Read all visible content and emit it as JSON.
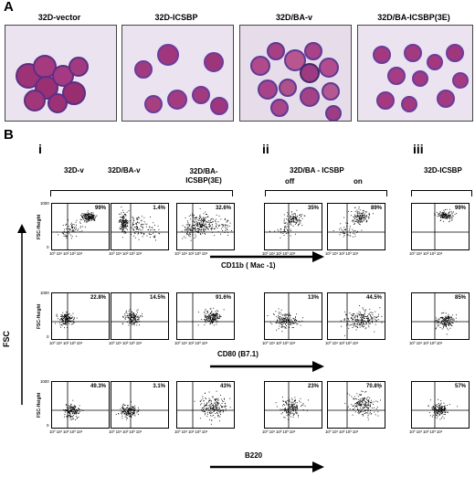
{
  "panel_a": {
    "letter": "A",
    "images": [
      {
        "label": "32D-vector"
      },
      {
        "label": "32D-ICSBP"
      },
      {
        "label": "32D/BA-v"
      },
      {
        "label": "32D/BA-ICSBP(3E)"
      }
    ]
  },
  "panel_b": {
    "letter": "B",
    "sections": [
      "i",
      "ii",
      "iii"
    ],
    "column_labels": {
      "c1": "32D-v",
      "c2": "32D/BA-v",
      "c3": "32D/BA-\nICSBP(3E)",
      "ii_title": "32D/BA - ICSBP",
      "ii_off": "off",
      "ii_on": "on",
      "iii_title": "32D-ICSBP"
    },
    "y_axis_main": "FSC",
    "y_axis_sub": "FSC-Height",
    "y_tick_top": "1000",
    "y_tick_bottom": "0",
    "x_ticks": "10⁰ 10¹ 10² 10³ 10⁴",
    "markers": [
      "CD11b (   Mac -1)",
      "CD80 (B7.1)",
      "B220"
    ],
    "rows": [
      {
        "percents": [
          "99%",
          "1.4%",
          "32.6%",
          "35%",
          "89%",
          "99%"
        ]
      },
      {
        "percents": [
          "22.8%",
          "14.5%",
          "91.6%",
          "13%",
          "44.5%",
          "85%"
        ]
      },
      {
        "percents": [
          "49.3%",
          "3.1%",
          "43%",
          "23%",
          "70.8%",
          "57%"
        ]
      }
    ]
  },
  "colors": {
    "cell_magenta": "#a2317a",
    "cell_purple": "#6d3d9e",
    "background_lavender": "#e9e0ee"
  }
}
